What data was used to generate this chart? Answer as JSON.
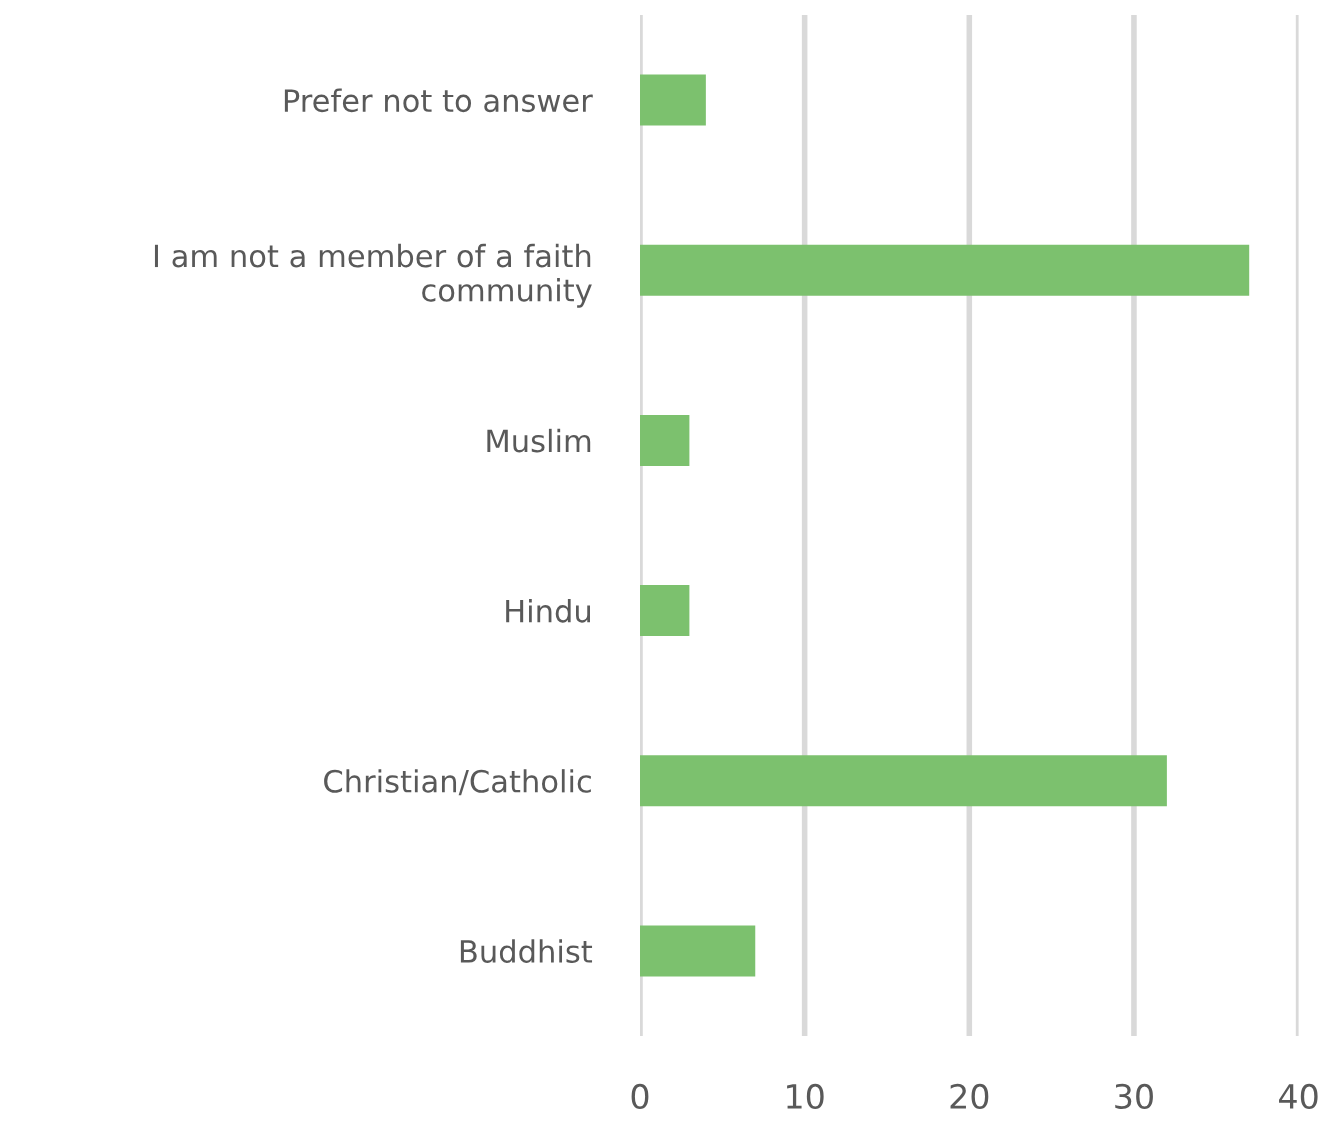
{
  "chart_data": {
    "type": "bar",
    "orientation": "horizontal",
    "categories": [
      "Prefer not to answer",
      "I am not a member of a faith\ncommunity",
      "Muslim",
      "Hindu",
      "Christian/Catholic",
      "Buddhist"
    ],
    "values": [
      4,
      37,
      3,
      3,
      32,
      7
    ],
    "color": "#7cc16e",
    "xlim": [
      0,
      40
    ],
    "xticks": [
      0,
      10,
      20,
      30,
      40
    ],
    "grid": "x"
  }
}
